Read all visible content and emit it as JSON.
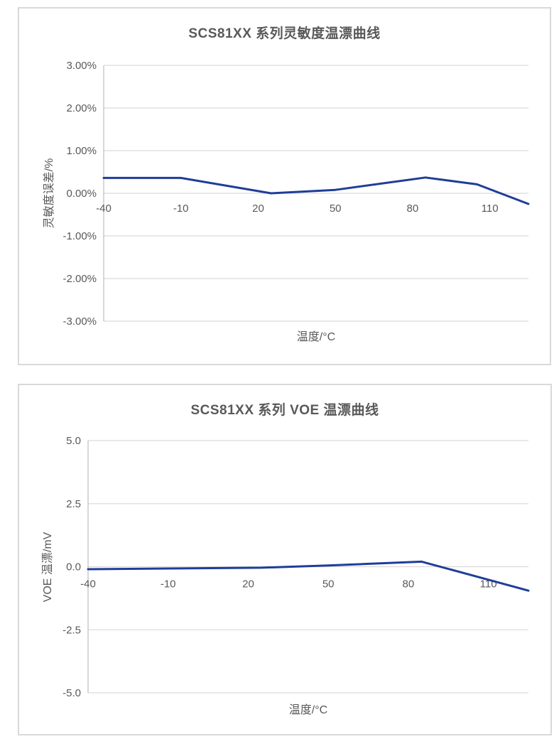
{
  "page": {
    "background": "#ffffff"
  },
  "colors": {
    "line": "#1f3d99",
    "grid": "#d9d9d9",
    "axis": "#bfbfbf",
    "text": "#595959",
    "title": "#595959",
    "panel_border": "#d9d9d9"
  },
  "chart_data": [
    {
      "type": "line",
      "title": "SCS81XX 系列灵敏度温漂曲线",
      "xlabel": "温度/°C",
      "ylabel": "灵敏度误差/%",
      "xlim": [
        -40,
        125
      ],
      "ylim": [
        -3,
        3
      ],
      "x_ticks": [
        -40,
        -10,
        20,
        50,
        80,
        110
      ],
      "y_ticks": [
        3,
        2,
        1,
        0,
        -1,
        -2,
        -3
      ],
      "y_tick_labels": [
        "3.00%",
        "2.00%",
        "1.00%",
        "0.00%",
        "-1.00%",
        "-2.00%",
        "-3.00%"
      ],
      "grid": "horizontal-only",
      "legend": "none",
      "series": [
        {
          "name": "灵敏度误差",
          "color": "#1f3d99",
          "points": [
            [
              -40,
              0.36
            ],
            [
              -10,
              0.36
            ],
            [
              25,
              0.0
            ],
            [
              50,
              0.08
            ],
            [
              85,
              0.37
            ],
            [
              105,
              0.21
            ],
            [
              125,
              -0.25
            ]
          ]
        }
      ]
    },
    {
      "type": "line",
      "title": "SCS81XX 系列 VOE 温漂曲线",
      "xlabel": "温度/°C",
      "ylabel": "VOE 温漂/mV",
      "xlim": [
        -40,
        125
      ],
      "ylim": [
        -5,
        5
      ],
      "x_ticks": [
        -40,
        -10,
        20,
        50,
        80,
        110
      ],
      "y_ticks": [
        5,
        2.5,
        0,
        -2.5,
        -5
      ],
      "y_tick_labels": [
        "5.0",
        "2.5",
        "0.0",
        "-2.5",
        "-5.0"
      ],
      "grid": "horizontal-only",
      "legend": "none",
      "series": [
        {
          "name": "VOE 温漂",
          "color": "#1f3d99",
          "points": [
            [
              -40,
              -0.1
            ],
            [
              -10,
              -0.07
            ],
            [
              25,
              -0.04
            ],
            [
              50,
              0.05
            ],
            [
              85,
              0.2
            ],
            [
              125,
              -0.95
            ]
          ]
        }
      ]
    }
  ]
}
